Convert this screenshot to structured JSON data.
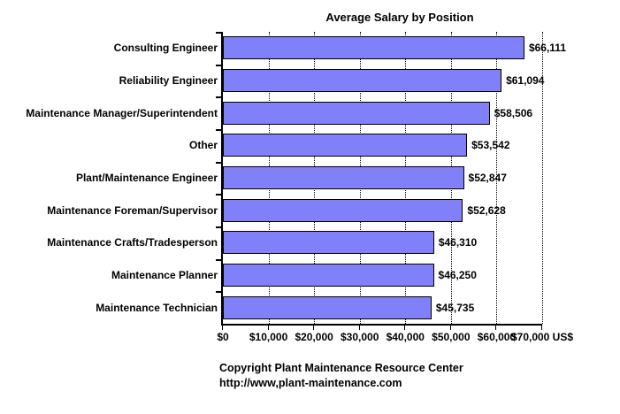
{
  "page": {
    "background": "#ffffff",
    "text_color": "#000000"
  },
  "chart_data": {
    "type": "bar",
    "orientation": "horizontal",
    "title": "Average Salary by Position",
    "categories": [
      "Consulting Engineer",
      "Reliability Engineer",
      "Maintenance Manager/Superintendent",
      "Other",
      "Plant/Maintenance Engineer",
      "Maintenance Foreman/Supervisor",
      "Maintenance Crafts/Tradesperson",
      "Maintenance Planner",
      "Maintenance Technician"
    ],
    "values": [
      66111,
      61094,
      58506,
      53542,
      52847,
      52628,
      46310,
      46250,
      45735
    ],
    "value_labels": [
      "$66,111",
      "$61,094",
      "$58,506",
      "$53,542",
      "$52,847",
      "$52,628",
      "$46,310",
      "$46,250",
      "$45,735"
    ],
    "x_tick_labels": [
      "$0",
      "$10,000",
      "$20,000",
      "$30,000",
      "$40,000",
      "$50,000",
      "$60,000",
      "$70,000 US$"
    ],
    "xlim": [
      0,
      70000
    ],
    "x_tick_step": 10000,
    "grid": "dotted-vertical-gridlines",
    "legend": "none",
    "bar_color": "#8080F8",
    "bar_border_color": "#000000",
    "axis_color": "#000000"
  },
  "footer": {
    "line1": "Copyright Plant Maintenance Resource Center",
    "line2": "http://www,plant-maintenance.com"
  }
}
